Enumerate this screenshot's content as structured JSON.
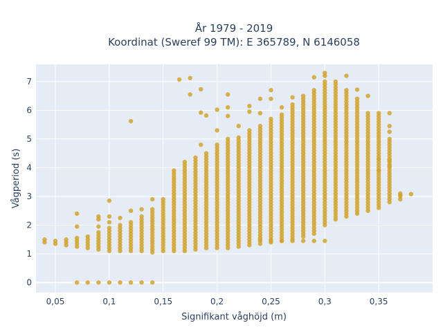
{
  "chart_data": {
    "type": "scatter",
    "title_line1": "År 1979 - 2019",
    "title_line2": "Koordinat (Sweref 99 TM): E 365789, N 6146058",
    "xlabel": "Signifikant våghöjd (m)",
    "ylabel": "Vågperiod (s)",
    "xlim": [
      0.032,
      0.4
    ],
    "ylim": [
      -0.35,
      7.6
    ],
    "x_ticks": [
      {
        "value": 0.05,
        "label": "0,05"
      },
      {
        "value": 0.1,
        "label": "0,1"
      },
      {
        "value": 0.15,
        "label": "0,15"
      },
      {
        "value": 0.2,
        "label": "0,2"
      },
      {
        "value": 0.25,
        "label": "0,25"
      },
      {
        "value": 0.3,
        "label": "0,3"
      },
      {
        "value": 0.35,
        "label": "0,35"
      }
    ],
    "y_ticks": [
      {
        "value": 0,
        "label": "0"
      },
      {
        "value": 1,
        "label": "1"
      },
      {
        "value": 2,
        "label": "2"
      },
      {
        "value": 3,
        "label": "3"
      },
      {
        "value": 4,
        "label": "4"
      },
      {
        "value": 5,
        "label": "5"
      },
      {
        "value": 6,
        "label": "6"
      },
      {
        "value": 7,
        "label": "7"
      }
    ],
    "grid": true,
    "legend": "none",
    "marker_color": "#d4a52a",
    "plot_bg": "#e5ecf6",
    "columns": [
      {
        "x": 0.04,
        "ymin": 1.4,
        "ymax": 1.5
      },
      {
        "x": 0.05,
        "ymin": 1.35,
        "ymax": 1.5
      },
      {
        "x": 0.06,
        "ymin": 1.3,
        "ymax": 1.55
      },
      {
        "x": 0.07,
        "ymin": 1.25,
        "ymax": 1.6
      },
      {
        "x": 0.08,
        "ymin": 1.2,
        "ymax": 1.6
      },
      {
        "x": 0.09,
        "ymin": 1.15,
        "ymax": 1.8
      },
      {
        "x": 0.1,
        "ymin": 1.1,
        "ymax": 1.9
      },
      {
        "x": 0.11,
        "ymin": 1.1,
        "ymax": 2.0
      },
      {
        "x": 0.12,
        "ymin": 1.1,
        "ymax": 2.1
      },
      {
        "x": 0.13,
        "ymin": 1.1,
        "ymax": 2.3
      },
      {
        "x": 0.14,
        "ymin": 1.05,
        "ymax": 2.6
      },
      {
        "x": 0.15,
        "ymin": 1.1,
        "ymax": 2.8
      },
      {
        "x": 0.16,
        "ymin": 1.1,
        "ymax": 3.9
      },
      {
        "x": 0.17,
        "ymin": 1.1,
        "ymax": 4.2
      },
      {
        "x": 0.18,
        "ymin": 1.15,
        "ymax": 4.4
      },
      {
        "x": 0.19,
        "ymin": 1.2,
        "ymax": 4.5
      },
      {
        "x": 0.2,
        "ymin": 1.2,
        "ymax": 4.8
      },
      {
        "x": 0.21,
        "ymin": 1.2,
        "ymax": 5.0
      },
      {
        "x": 0.22,
        "ymin": 1.25,
        "ymax": 5.1
      },
      {
        "x": 0.23,
        "ymin": 1.3,
        "ymax": 5.3
      },
      {
        "x": 0.24,
        "ymin": 1.35,
        "ymax": 5.5
      },
      {
        "x": 0.25,
        "ymin": 1.4,
        "ymax": 5.7
      },
      {
        "x": 0.26,
        "ymin": 1.45,
        "ymax": 5.9
      },
      {
        "x": 0.27,
        "ymin": 1.5,
        "ymax": 6.2
      },
      {
        "x": 0.28,
        "ymin": 1.6,
        "ymax": 6.4
      },
      {
        "x": 0.29,
        "ymin": 1.7,
        "ymax": 6.7
      },
      {
        "x": 0.3,
        "ymin": 2.0,
        "ymax": 7.0
      },
      {
        "x": 0.31,
        "ymin": 2.2,
        "ymax": 6.9
      },
      {
        "x": 0.32,
        "ymin": 2.3,
        "ymax": 6.7
      },
      {
        "x": 0.33,
        "ymin": 2.4,
        "ymax": 6.4
      },
      {
        "x": 0.34,
        "ymin": 2.5,
        "ymax": 5.9
      },
      {
        "x": 0.35,
        "ymin": 2.6,
        "ymax": 5.9
      },
      {
        "x": 0.36,
        "ymin": 2.8,
        "ymax": 5.0
      },
      {
        "x": 0.37,
        "ymin": 2.9,
        "ymax": 3.1
      }
    ],
    "points": [
      {
        "x": 0.07,
        "y": 0
      },
      {
        "x": 0.08,
        "y": 0
      },
      {
        "x": 0.09,
        "y": 0
      },
      {
        "x": 0.1,
        "y": 0
      },
      {
        "x": 0.11,
        "y": 0
      },
      {
        "x": 0.12,
        "y": 0
      },
      {
        "x": 0.13,
        "y": 0
      },
      {
        "x": 0.14,
        "y": 0
      },
      {
        "x": 0.07,
        "y": 2.4
      },
      {
        "x": 0.07,
        "y": 1.95
      },
      {
        "x": 0.09,
        "y": 2.3
      },
      {
        "x": 0.09,
        "y": 2.2
      },
      {
        "x": 0.09,
        "y": 1.95
      },
      {
        "x": 0.1,
        "y": 2.85
      },
      {
        "x": 0.1,
        "y": 2.3
      },
      {
        "x": 0.1,
        "y": 2.1
      },
      {
        "x": 0.11,
        "y": 2.25
      },
      {
        "x": 0.12,
        "y": 5.62
      },
      {
        "x": 0.12,
        "y": 2.5
      },
      {
        "x": 0.13,
        "y": 2.55
      },
      {
        "x": 0.14,
        "y": 2.9
      },
      {
        "x": 0.15,
        "y": 2.9
      },
      {
        "x": 0.165,
        "y": 7.07
      },
      {
        "x": 0.175,
        "y": 7.12
      },
      {
        "x": 0.175,
        "y": 6.55
      },
      {
        "x": 0.185,
        "y": 6.73
      },
      {
        "x": 0.185,
        "y": 5.92
      },
      {
        "x": 0.19,
        "y": 5.82
      },
      {
        "x": 0.185,
        "y": 4.8
      },
      {
        "x": 0.2,
        "y": 6.02
      },
      {
        "x": 0.2,
        "y": 5.3
      },
      {
        "x": 0.21,
        "y": 6.55
      },
      {
        "x": 0.21,
        "y": 6.1
      },
      {
        "x": 0.21,
        "y": 5.8
      },
      {
        "x": 0.22,
        "y": 5.45
      },
      {
        "x": 0.23,
        "y": 6.15
      },
      {
        "x": 0.23,
        "y": 5.95
      },
      {
        "x": 0.24,
        "y": 6.4
      },
      {
        "x": 0.24,
        "y": 5.9
      },
      {
        "x": 0.25,
        "y": 6.7
      },
      {
        "x": 0.25,
        "y": 6.4
      },
      {
        "x": 0.26,
        "y": 6.1
      },
      {
        "x": 0.27,
        "y": 6.45
      },
      {
        "x": 0.28,
        "y": 6.5
      },
      {
        "x": 0.29,
        "y": 7.15
      },
      {
        "x": 0.3,
        "y": 7.3
      },
      {
        "x": 0.3,
        "y": 7.2
      },
      {
        "x": 0.31,
        "y": 7.0
      },
      {
        "x": 0.32,
        "y": 7.2
      },
      {
        "x": 0.33,
        "y": 6.72
      },
      {
        "x": 0.34,
        "y": 6.5
      },
      {
        "x": 0.36,
        "y": 5.9
      },
      {
        "x": 0.36,
        "y": 5.45
      },
      {
        "x": 0.36,
        "y": 5.25
      },
      {
        "x": 0.36,
        "y": 4.25
      },
      {
        "x": 0.36,
        "y": 4.05
      },
      {
        "x": 0.35,
        "y": 4.3
      },
      {
        "x": 0.35,
        "y": 3.9
      },
      {
        "x": 0.37,
        "y": 3.05
      },
      {
        "x": 0.38,
        "y": 3.08
      },
      {
        "x": 0.24,
        "y": 1.5
      },
      {
        "x": 0.25,
        "y": 1.45
      },
      {
        "x": 0.26,
        "y": 1.45
      },
      {
        "x": 0.27,
        "y": 1.45
      },
      {
        "x": 0.28,
        "y": 1.45
      },
      {
        "x": 0.29,
        "y": 1.45
      },
      {
        "x": 0.3,
        "y": 1.45
      }
    ]
  }
}
